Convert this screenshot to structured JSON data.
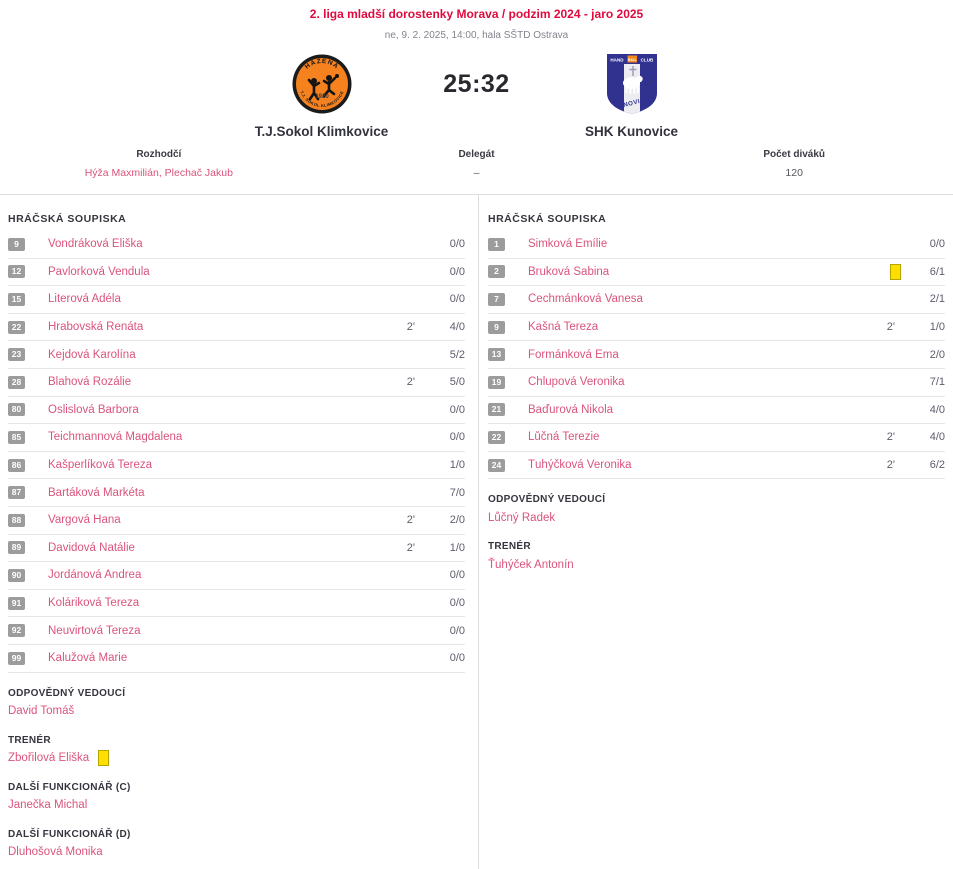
{
  "page": {
    "title": "2. liga mladší dorostenky Morava / podzim 2024 - jaro 2025",
    "subtitle": "ne, 9. 2. 2025, 14:00, hala SŠTD Ostrava",
    "score": "25:32"
  },
  "teams": {
    "home": {
      "name": "T.J.Sokol Klimkovice",
      "logo_top_arc": "HÁZENÁ",
      "logo_year": "1920",
      "logo_bottom_arc": "T.J. SOKOL KLIMKOVICE"
    },
    "away": {
      "name": "SHK Kunovice",
      "logo_banner_left": "HAND",
      "logo_banner_mid": "BALL",
      "logo_banner_right": "CLUB",
      "logo_ribbon": "KUNOVICE"
    }
  },
  "match_info": {
    "referees": {
      "label": "Rozhodčí",
      "value": "Hýža Maxmilián, Plechač Jakub"
    },
    "delegate": {
      "label": "Delegát",
      "value": "–"
    },
    "attendance": {
      "label": "Počet diváků",
      "value": "120"
    }
  },
  "roster_heading": "HRÁČSKÁ SOUPISKA",
  "home_roster": {
    "players": [
      {
        "number": "9",
        "name": "Vondráková Eliška",
        "penalty": "",
        "yellow_card": false,
        "stats": "0/0"
      },
      {
        "number": "12",
        "name": "Pavlorková Vendula",
        "penalty": "",
        "yellow_card": false,
        "stats": "0/0"
      },
      {
        "number": "15",
        "name": "Literová Adéla",
        "penalty": "",
        "yellow_card": false,
        "stats": "0/0"
      },
      {
        "number": "22",
        "name": "Hrabovská Renáta",
        "penalty": "2'",
        "yellow_card": false,
        "stats": "4/0"
      },
      {
        "number": "23",
        "name": "Kejdová Karolína",
        "penalty": "",
        "yellow_card": false,
        "stats": "5/2"
      },
      {
        "number": "28",
        "name": "Blahová Rozálie",
        "penalty": "2'",
        "yellow_card": false,
        "stats": "5/0"
      },
      {
        "number": "80",
        "name": "Oslislová Barbora",
        "penalty": "",
        "yellow_card": false,
        "stats": "0/0"
      },
      {
        "number": "85",
        "name": "Teichmannová Magdalena",
        "penalty": "",
        "yellow_card": false,
        "stats": "0/0"
      },
      {
        "number": "86",
        "name": "Kašperlíková Tereza",
        "penalty": "",
        "yellow_card": false,
        "stats": "1/0"
      },
      {
        "number": "87",
        "name": "Bartáková Markéta",
        "penalty": "",
        "yellow_card": false,
        "stats": "7/0"
      },
      {
        "number": "88",
        "name": "Vargová Hana",
        "penalty": "2'",
        "yellow_card": false,
        "stats": "2/0"
      },
      {
        "number": "89",
        "name": "Davidová Natálie",
        "penalty": "2'",
        "yellow_card": false,
        "stats": "1/0"
      },
      {
        "number": "90",
        "name": "Jordánová Andrea",
        "penalty": "",
        "yellow_card": false,
        "stats": "0/0"
      },
      {
        "number": "91",
        "name": "Koláriková Tereza",
        "penalty": "",
        "yellow_card": false,
        "stats": "0/0"
      },
      {
        "number": "92",
        "name": "Neuvirtová Tereza",
        "penalty": "",
        "yellow_card": false,
        "stats": "0/0"
      },
      {
        "number": "99",
        "name": "Kalužová Marie",
        "penalty": "",
        "yellow_card": false,
        "stats": "0/0"
      }
    ],
    "officials": [
      {
        "label": "ODPOVĚDNÝ VEDOUCÍ",
        "name": "David Tomáš",
        "yellow_card": false
      },
      {
        "label": "TRENÉR",
        "name": "Zbořilová Eliška",
        "yellow_card": true
      },
      {
        "label": "DALŠÍ FUNKCIONÁŘ (C)",
        "name": "Janečka Michal",
        "yellow_card": false
      },
      {
        "label": "DALŠÍ FUNKCIONÁŘ (D)",
        "name": "Dluhošová Monika",
        "yellow_card": false
      }
    ]
  },
  "away_roster": {
    "players": [
      {
        "number": "1",
        "name": "Šimková Emílie",
        "penalty": "",
        "yellow_card": false,
        "stats": "0/0"
      },
      {
        "number": "2",
        "name": "Bruková Sabina",
        "penalty": "",
        "yellow_card": true,
        "stats": "6/1"
      },
      {
        "number": "7",
        "name": "Čechmánková Vanesa",
        "penalty": "",
        "yellow_card": false,
        "stats": "2/1"
      },
      {
        "number": "9",
        "name": "Kašná Tereza",
        "penalty": "2'",
        "yellow_card": false,
        "stats": "1/0"
      },
      {
        "number": "13",
        "name": "Formánková Ema",
        "penalty": "",
        "yellow_card": false,
        "stats": "2/0"
      },
      {
        "number": "19",
        "name": "Chlupová Veronika",
        "penalty": "",
        "yellow_card": false,
        "stats": "7/1"
      },
      {
        "number": "21",
        "name": "Baďurová Nikola",
        "penalty": "",
        "yellow_card": false,
        "stats": "4/0"
      },
      {
        "number": "22",
        "name": "Lůčná Terezie",
        "penalty": "2'",
        "yellow_card": false,
        "stats": "4/0"
      },
      {
        "number": "24",
        "name": "Ťuhýčková Veronika",
        "penalty": "2'",
        "yellow_card": false,
        "stats": "6/2"
      }
    ],
    "officials": [
      {
        "label": "ODPOVĚDNÝ VEDOUCÍ",
        "name": "Lůčný Radek",
        "yellow_card": false
      },
      {
        "label": "TRENÉR",
        "name": "Ťuhýček Antonín",
        "yellow_card": false
      }
    ]
  },
  "colors": {
    "accent_red": "#e00a3e",
    "link_pink": "#da547c",
    "badge_gray": "#9c9c9c",
    "card_yellow": "#ffdf00",
    "home_logo_orange": "#f5821f",
    "away_logo_navy": "#31318f"
  }
}
